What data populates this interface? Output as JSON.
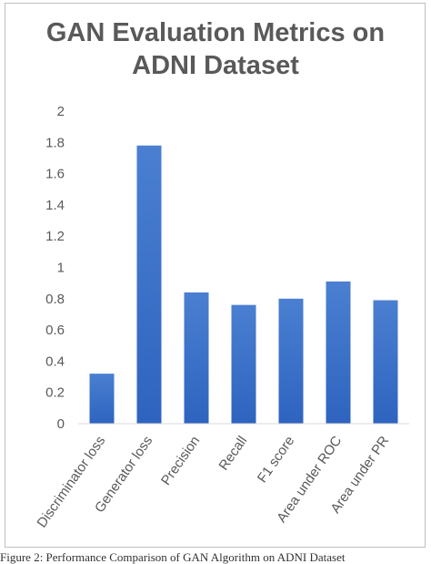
{
  "chart_data": {
    "type": "bar",
    "title": "GAN Evaluation Metrics on\nADNI Dataset",
    "categories": [
      "Discriminator loss",
      "Generator loss",
      "Precision",
      "Recall",
      "F1 score",
      "Area under ROC",
      "Area under PR"
    ],
    "values": [
      0.32,
      1.78,
      0.84,
      0.76,
      0.8,
      0.91,
      0.79
    ],
    "ylim": [
      0,
      2
    ],
    "yticks": [
      "0",
      "0.2",
      "0.4",
      "0.6",
      "0.8",
      "1",
      "1.2",
      "1.4",
      "1.6",
      "1.8",
      "2"
    ],
    "grid": false,
    "legend": "none",
    "bar_color_top": "#4a7fd1",
    "bar_color_bottom": "#2e64bf"
  },
  "caption": "Figure 2: Performance Comparison of GAN Algorithm on ADNI Dataset"
}
